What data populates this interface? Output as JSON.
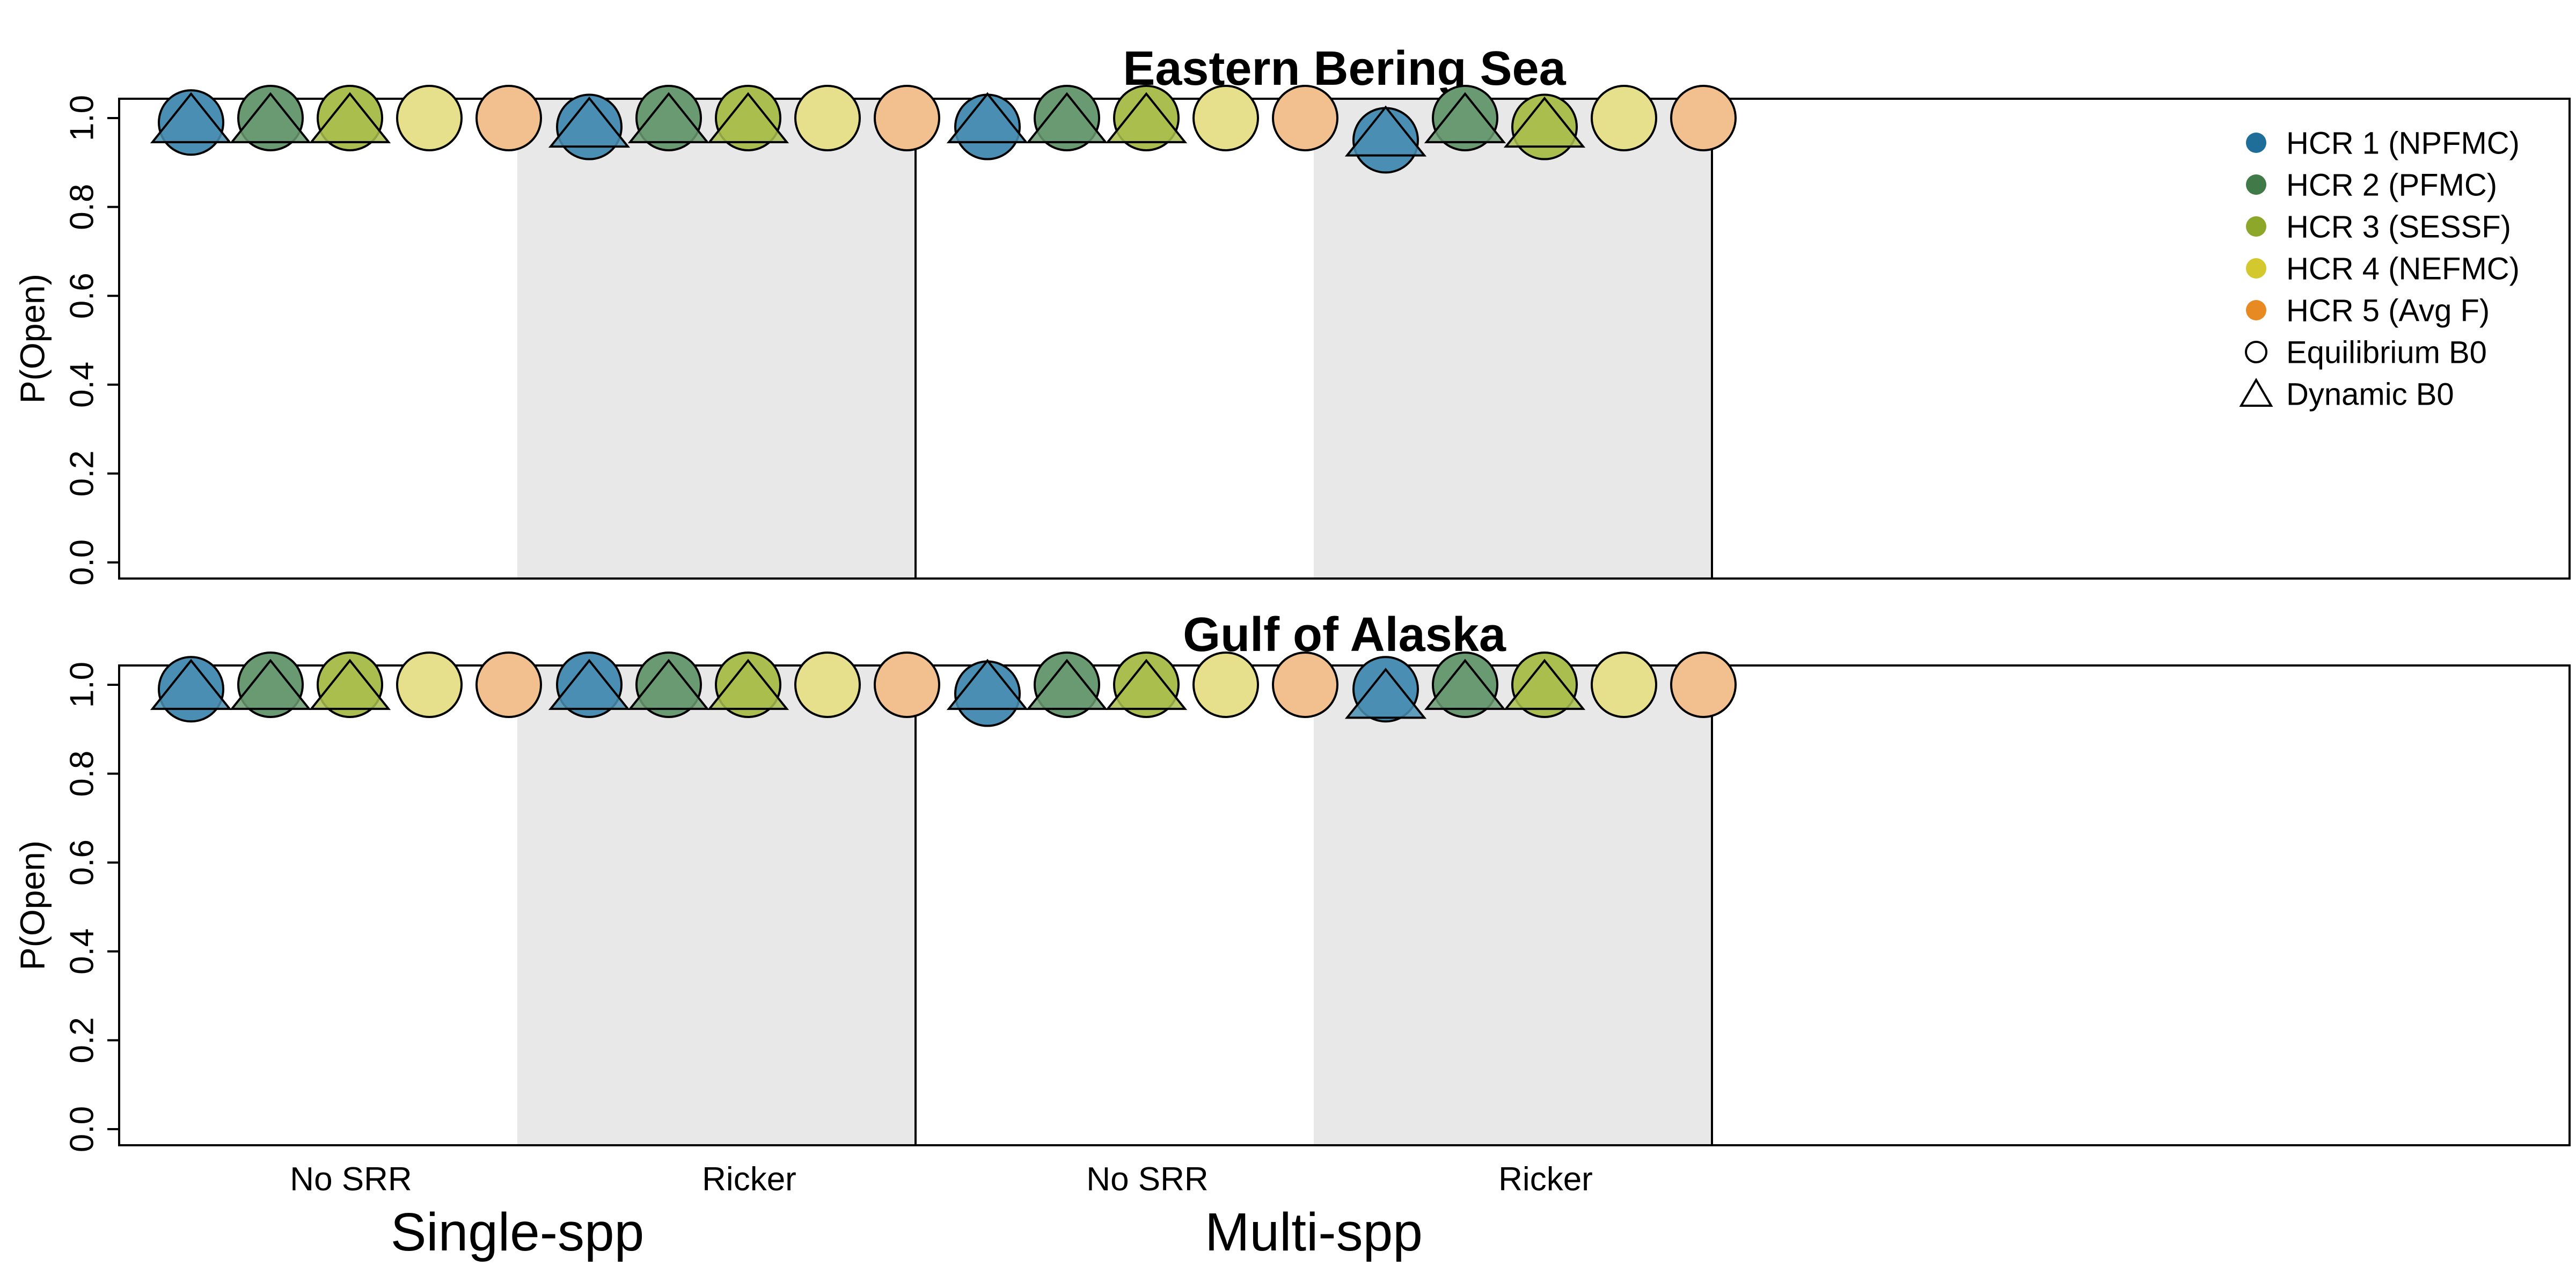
{
  "chart_data": {
    "type": "scatter",
    "panels": [
      {
        "title": "Eastern Bering Sea",
        "ylabel": "P(Open)",
        "ylim": [
          0,
          1
        ],
        "yticks": [
          "0.0",
          "0.2",
          "0.4",
          "0.6",
          "0.8",
          "1.0"
        ],
        "blocks": [
          {
            "group": "Single-spp",
            "category": "No SRR",
            "equilibrium": [
              0.99,
              1.0,
              1.0,
              1.0,
              1.0
            ],
            "dynamic": [
              0.97,
              0.97,
              0.97
            ]
          },
          {
            "group": "Single-spp",
            "category": "Ricker",
            "equilibrium": [
              0.98,
              1.0,
              1.0,
              1.0,
              1.0
            ],
            "dynamic": [
              0.96,
              0.97,
              0.97
            ]
          },
          {
            "group": "Multi-spp",
            "category": "No SRR",
            "equilibrium": [
              0.98,
              1.0,
              1.0,
              1.0,
              1.0
            ],
            "dynamic": [
              0.97,
              0.97,
              0.97
            ]
          },
          {
            "group": "Multi-spp",
            "category": "Ricker",
            "equilibrium": [
              0.95,
              1.0,
              0.98,
              1.0,
              1.0
            ],
            "dynamic": [
              0.94,
              0.97,
              0.96
            ]
          }
        ]
      },
      {
        "title": "Gulf of Alaska",
        "ylabel": "P(Open)",
        "ylim": [
          0,
          1
        ],
        "yticks": [
          "0.0",
          "0.2",
          "0.4",
          "0.6",
          "0.8",
          "1.0"
        ],
        "blocks": [
          {
            "group": "Single-spp",
            "category": "No SRR",
            "equilibrium": [
              0.99,
              1.0,
              1.0,
              1.0,
              1.0
            ],
            "dynamic": [
              0.97,
              0.97,
              0.97
            ]
          },
          {
            "group": "Single-spp",
            "category": "Ricker",
            "equilibrium": [
              1.0,
              1.0,
              1.0,
              1.0,
              1.0
            ],
            "dynamic": [
              0.97,
              0.97,
              0.97
            ]
          },
          {
            "group": "Multi-spp",
            "category": "No SRR",
            "equilibrium": [
              0.98,
              1.0,
              1.0,
              1.0,
              1.0
            ],
            "dynamic": [
              0.97,
              0.97,
              0.97
            ]
          },
          {
            "group": "Multi-spp",
            "category": "Ricker",
            "equilibrium": [
              0.99,
              1.0,
              1.0,
              1.0,
              1.0
            ],
            "dynamic": [
              0.95,
              0.97,
              0.97
            ]
          }
        ]
      }
    ],
    "categories": [
      "No SRR",
      "Ricker",
      "No SRR",
      "Ricker"
    ],
    "groups": [
      "Single-spp",
      "Multi-spp"
    ],
    "series": [
      {
        "name": "HCR 1 (NPFMC)",
        "color": "#1F6E9A",
        "fill": "#4A8EB3"
      },
      {
        "name": "HCR 2 (PFMC)",
        "color": "#3F7A48",
        "fill": "#6A9A71"
      },
      {
        "name": "HCR 3 (SESSF)",
        "color": "#8CA72A",
        "fill": "#A9BE4E"
      },
      {
        "name": "HCR 4 (NEFMC)",
        "color": "#D3C92E",
        "fill": "#E6E08C"
      },
      {
        "name": "HCR 5 (Avg F)",
        "color": "#E88A22",
        "fill": "#F2C08E"
      }
    ],
    "shape_legend": [
      {
        "name": "Equilibrium B0",
        "shape": "circle"
      },
      {
        "name": "Dynamic B0",
        "shape": "triangle"
      }
    ],
    "legend_position": "top-right",
    "shaded_categories": [
      "Ricker"
    ],
    "shade_color": "#E8E8E8"
  }
}
